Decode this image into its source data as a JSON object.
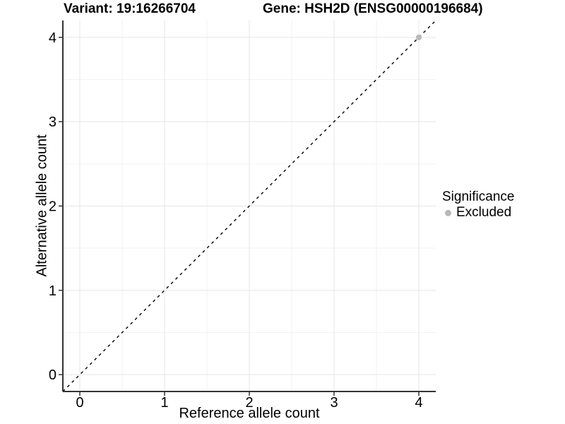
{
  "figure": {
    "title_left": "Variant: 19:16266704",
    "title_right": "Gene: HSH2D (ENSG00000196684)"
  },
  "chart_data": {
    "type": "scatter",
    "title": "Variant: 19:16266704   Gene: HSH2D (ENSG00000196684)",
    "xlabel": "Reference allele count",
    "ylabel": "Alternative allele count",
    "xlim": [
      -0.2,
      4.2
    ],
    "ylim": [
      -0.2,
      4.2
    ],
    "x_ticks": [
      0,
      1,
      2,
      3,
      4
    ],
    "y_ticks": [
      0,
      1,
      2,
      3,
      4
    ],
    "x_minor_ticks": [
      0.5,
      1.5,
      2.5,
      3.5
    ],
    "y_minor_ticks": [
      0.5,
      1.5,
      2.5,
      3.5
    ],
    "grid": "major+minor",
    "series": [
      {
        "name": "Excluded",
        "color": "#b8b8b8",
        "marker": "circle",
        "points": [
          [
            4,
            4
          ]
        ]
      }
    ],
    "reference_line": {
      "kind": "identity",
      "from": [
        -0.2,
        -0.2
      ],
      "to": [
        4.2,
        4.2
      ],
      "style": "dashed",
      "color": "#000000"
    },
    "legend": {
      "title": "Significance",
      "position": "right",
      "entries": [
        {
          "label": "Excluded",
          "color": "#b8b8b8",
          "marker": "circle"
        }
      ]
    }
  },
  "colors": {
    "background": "#ffffff",
    "axis_line": "#333333",
    "tick_mark": "#333333",
    "grid_major": "#e5e5e5",
    "grid_minor": "#f2f2f2",
    "text": "#000000",
    "point": "#b8b8b8"
  }
}
